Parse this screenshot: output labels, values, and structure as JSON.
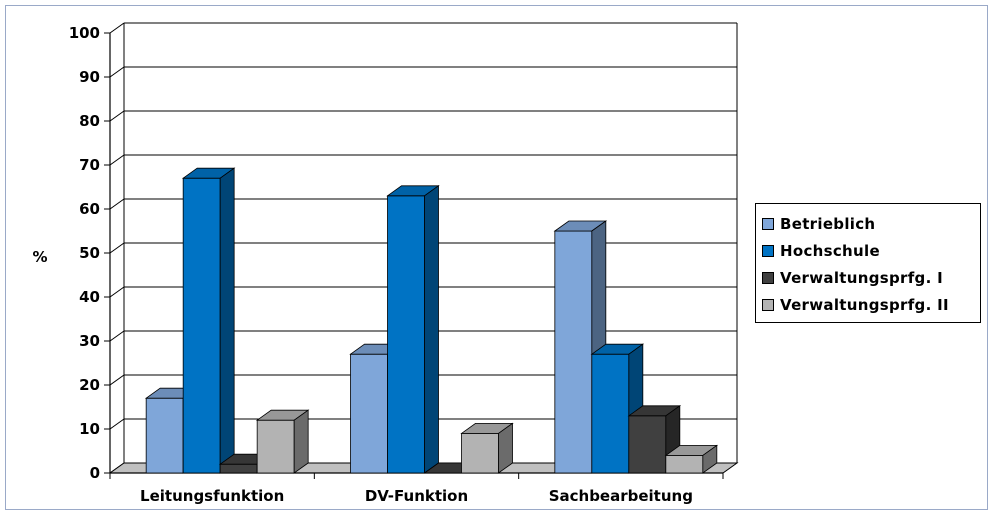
{
  "chart_data": {
    "type": "bar",
    "ylabel": "%",
    "ylim": [
      0,
      100
    ],
    "yticks": [
      "0",
      "10",
      "20",
      "30",
      "40",
      "50",
      "60",
      "70",
      "80",
      "90",
      "100"
    ],
    "categories": [
      "Leitungsfunktion",
      "DV-Funktion",
      "Sachbearbeitung"
    ],
    "series": [
      {
        "name": "Betrieblich",
        "values": [
          17,
          27,
          55
        ],
        "color": "#7fa6d9"
      },
      {
        "name": "Hochschule",
        "values": [
          67,
          63,
          27
        ],
        "color": "#0073c4"
      },
      {
        "name": "Verwaltungsprfg. I",
        "values": [
          2,
          0,
          13
        ],
        "color": "#404040"
      },
      {
        "name": "Verwaltungsprfg. II",
        "values": [
          12,
          9,
          4
        ],
        "color": "#b3b3b3"
      }
    ],
    "grid": true,
    "legend": "right",
    "style": "3d-clustered-columns"
  }
}
